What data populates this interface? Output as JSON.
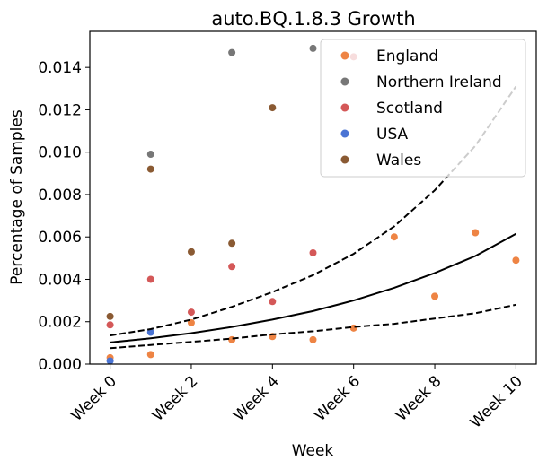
{
  "chart_data": {
    "type": "scatter",
    "title": "auto.BQ.1.8.3 Growth",
    "xlabel": "Week",
    "ylabel": "Percentage of Samples",
    "xlim": [
      -0.5,
      10.5
    ],
    "ylim": [
      0,
      0.0157
    ],
    "x_ticks": [
      {
        "value": 0,
        "label": "Week 0"
      },
      {
        "value": 2,
        "label": "Week 2"
      },
      {
        "value": 4,
        "label": "Week 4"
      },
      {
        "value": 6,
        "label": "Week 6"
      },
      {
        "value": 8,
        "label": "Week 8"
      },
      {
        "value": 10,
        "label": "Week 10"
      }
    ],
    "y_ticks": [
      {
        "value": 0,
        "label": "0.000"
      },
      {
        "value": 0.002,
        "label": "0.002"
      },
      {
        "value": 0.004,
        "label": "0.004"
      },
      {
        "value": 0.006,
        "label": "0.006"
      },
      {
        "value": 0.008,
        "label": "0.008"
      },
      {
        "value": 0.01,
        "label": "0.010"
      },
      {
        "value": 0.012,
        "label": "0.012"
      },
      {
        "value": 0.014,
        "label": "0.014"
      }
    ],
    "grid": false,
    "legend_position": "top-right",
    "series": [
      {
        "name": "England",
        "color": "#ee8444",
        "x": [
          0,
          1,
          2,
          3,
          4,
          5,
          6,
          7,
          8,
          9,
          10
        ],
        "y": [
          0.0003,
          0.00045,
          0.00195,
          0.00115,
          0.0013,
          0.00115,
          0.0017,
          0.006,
          0.0032,
          0.0062,
          0.0049
        ]
      },
      {
        "name": "Northern Ireland",
        "color": "#777777",
        "x": [
          1,
          3,
          5
        ],
        "y": [
          0.0099,
          0.0147,
          0.0149
        ]
      },
      {
        "name": "Scotland",
        "color": "#d45858",
        "x": [
          0,
          1,
          2,
          3,
          4,
          5,
          6
        ],
        "y": [
          0.00185,
          0.004,
          0.00245,
          0.0046,
          0.00295,
          0.00525,
          0.0145
        ]
      },
      {
        "name": "USA",
        "color": "#4a74d4",
        "x": [
          0,
          1
        ],
        "y": [
          0.00015,
          0.0015
        ]
      },
      {
        "name": "Wales",
        "color": "#8a5a33",
        "x": [
          0,
          1,
          2,
          3,
          4
        ],
        "y": [
          0.00225,
          0.0092,
          0.0053,
          0.0057,
          0.0121
        ]
      }
    ],
    "fit_lines": [
      {
        "style": "solid",
        "color": "#000000",
        "x": [
          0,
          1,
          2,
          3,
          4,
          5,
          6,
          7,
          8,
          9,
          10
        ],
        "y": [
          0.00102,
          0.00122,
          0.00146,
          0.00175,
          0.0021,
          0.0025,
          0.003,
          0.0036,
          0.0043,
          0.0051,
          0.00615
        ]
      },
      {
        "style": "dashed",
        "color": "#000000",
        "x": [
          0,
          1,
          2,
          3,
          4,
          5,
          6,
          7,
          8,
          9,
          10
        ],
        "y": [
          0.00135,
          0.00165,
          0.0021,
          0.0027,
          0.0034,
          0.0042,
          0.0052,
          0.0065,
          0.0082,
          0.0103,
          0.0131
        ]
      },
      {
        "style": "dashed",
        "color": "#000000",
        "x": [
          0,
          1,
          2,
          3,
          4,
          5,
          6,
          7,
          8,
          9,
          10
        ],
        "y": [
          0.00075,
          0.0009,
          0.00105,
          0.0012,
          0.0014,
          0.00155,
          0.00175,
          0.0019,
          0.00215,
          0.0024,
          0.0028
        ]
      }
    ]
  }
}
